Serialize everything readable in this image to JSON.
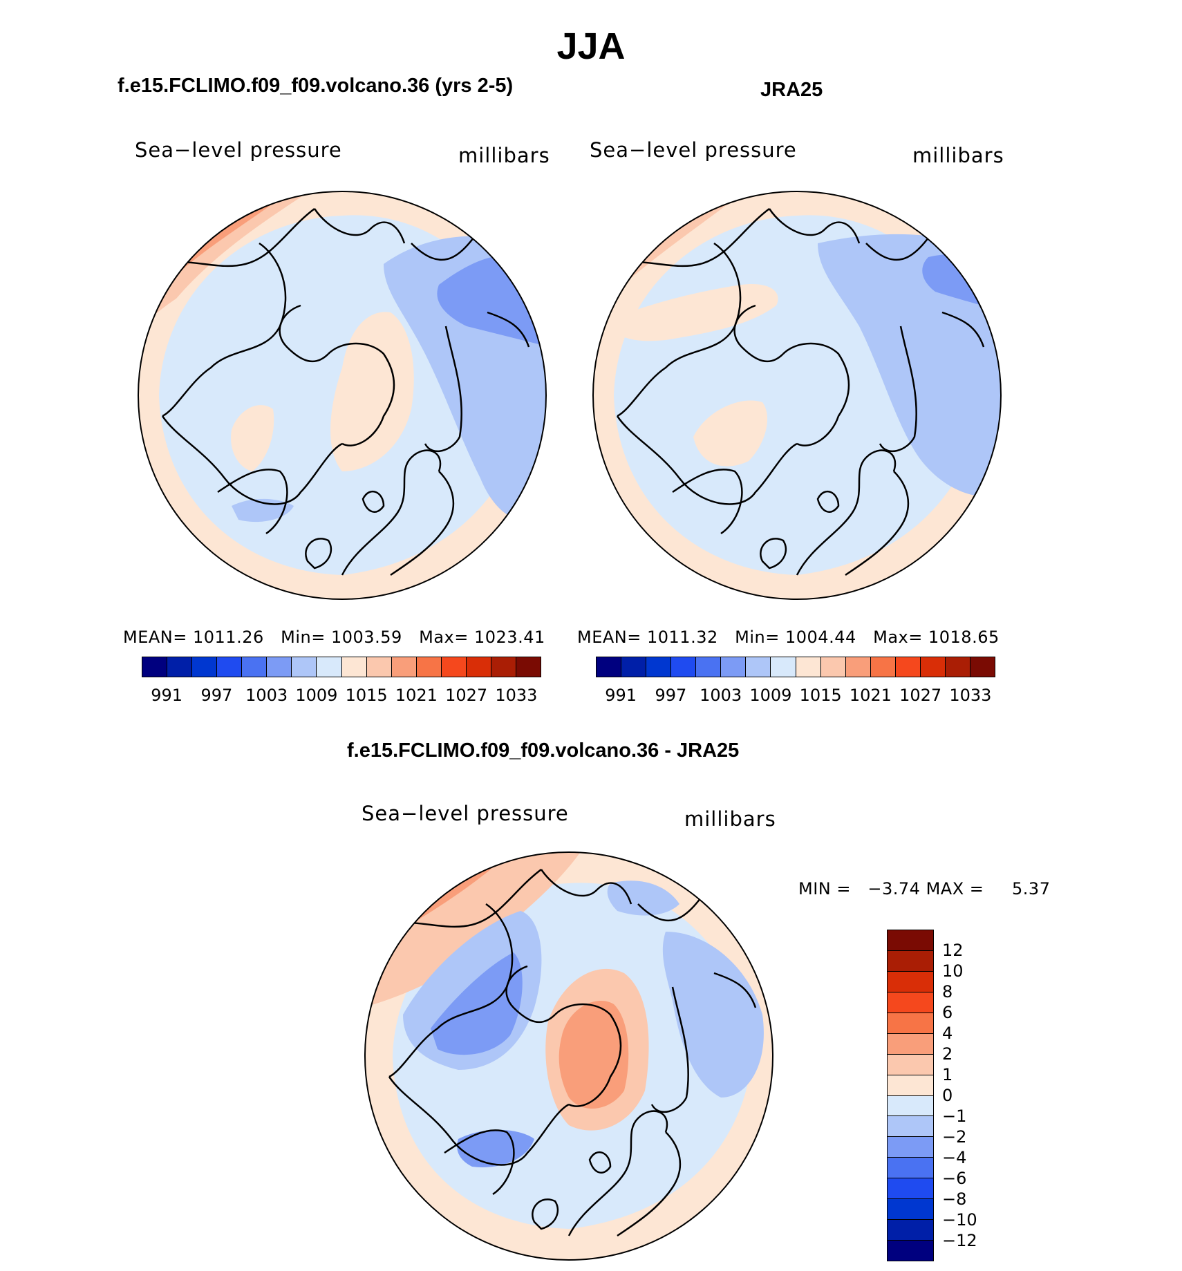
{
  "figure": {
    "season": "JJA",
    "panels": [
      {
        "id": "model",
        "title": "f.e15.FCLIMO.f09_f09.volcano.36 (yrs 2-5)",
        "variable": "Sea−level pressure",
        "units": "millibars",
        "stats": {
          "mean_label": "MEAN=",
          "mean": "1011.26",
          "min_label": "Min=",
          "min": "1003.59",
          "max_label": "Max=",
          "max": "1023.41"
        }
      },
      {
        "id": "obs",
        "title": "JRA25",
        "variable": "Sea−level pressure",
        "units": "millibars",
        "stats": {
          "mean_label": "MEAN=",
          "mean": "1011.32",
          "min_label": "Min=",
          "min": "1004.44",
          "max_label": "Max=",
          "max": "1018.65"
        }
      },
      {
        "id": "diff",
        "title": "f.e15.FCLIMO.f09_f09.volcano.36 - JRA25",
        "variable": "Sea−level pressure",
        "units": "millibars",
        "stats": {
          "min_label": "MIN =",
          "min": "−3.74",
          "max_label": "MAX =",
          "max": "5.37"
        }
      }
    ]
  },
  "colorbars": {
    "absolute": {
      "colors": [
        "#00007f",
        "#001fa8",
        "#0037d0",
        "#1f4bf0",
        "#4a72f2",
        "#7c9bf5",
        "#aec6f8",
        "#d8e9fb",
        "#fde6d4",
        "#fbc8ae",
        "#f99e7a",
        "#f77446",
        "#f5481d",
        "#d92e07",
        "#aa1e05",
        "#7a0b03"
      ],
      "labels": [
        "991",
        "997",
        "1003",
        "1009",
        "1015",
        "1021",
        "1027",
        "1033"
      ]
    },
    "difference": {
      "colors": [
        "#7a0b03",
        "#aa1e05",
        "#d92e07",
        "#f5481d",
        "#f77446",
        "#f99e7a",
        "#fbc8ae",
        "#fde6d4",
        "#d8e9fb",
        "#aec6f8",
        "#7c9bf5",
        "#4a72f2",
        "#1f4bf0",
        "#0037d0",
        "#001fa8",
        "#00007f"
      ],
      "labels": [
        "12",
        "10",
        "8",
        "6",
        "4",
        "2",
        "1",
        "0",
        "−1",
        "−2",
        "−4",
        "−6",
        "−8",
        "−10",
        "−12"
      ]
    }
  },
  "fields": {
    "model": {
      "background": "#d8e9fb",
      "regions": [
        {
          "color": "#fde6d4",
          "label": "outer-ring-low-lat"
        },
        {
          "color": "#fbc8ae",
          "label": "pacific-high-band"
        },
        {
          "color": "#f99e7a",
          "label": "pacific-high-core"
        },
        {
          "color": "#f77446",
          "label": "pacific-high-max"
        },
        {
          "color": "#aec6f8",
          "label": "asia-low"
        },
        {
          "color": "#7c9bf5",
          "label": "asia-low-core"
        },
        {
          "color": "#fde6d4",
          "label": "beaufort-high"
        },
        {
          "color": "#fde6d4",
          "label": "greenland-high"
        },
        {
          "color": "#aec6f8",
          "label": "iceland-low"
        }
      ]
    },
    "obs": {
      "background": "#d8e9fb",
      "regions": [
        {
          "color": "#fde6d4",
          "label": "outer-ring-low-lat"
        },
        {
          "color": "#fbc8ae",
          "label": "pacific-high-band"
        },
        {
          "color": "#f99e7a",
          "label": "pacific-high-core"
        },
        {
          "color": "#aec6f8",
          "label": "asia-low"
        },
        {
          "color": "#7c9bf5",
          "label": "asia-low-core"
        },
        {
          "color": "#fde6d4",
          "label": "alaska-high"
        },
        {
          "color": "#fde6d4",
          "label": "greenland-high"
        }
      ]
    },
    "diff": {
      "background": "#d8e9fb",
      "regions": [
        {
          "color": "#fde6d4",
          "label": "outer-ring"
        },
        {
          "color": "#fbc8ae",
          "label": "pacific-positive"
        },
        {
          "color": "#f99e7a",
          "label": "pacific-positive-core"
        },
        {
          "color": "#aec6f8",
          "label": "canada-negative"
        },
        {
          "color": "#7c9bf5",
          "label": "canada-negative-core"
        },
        {
          "color": "#fbc8ae",
          "label": "siberia-positive"
        },
        {
          "color": "#f99e7a",
          "label": "siberia-positive-core"
        },
        {
          "color": "#aec6f8",
          "label": "europe-negative"
        },
        {
          "color": "#7c9bf5",
          "label": "iceland-negative"
        },
        {
          "color": "#aec6f8",
          "label": "asia-negative"
        }
      ]
    }
  }
}
